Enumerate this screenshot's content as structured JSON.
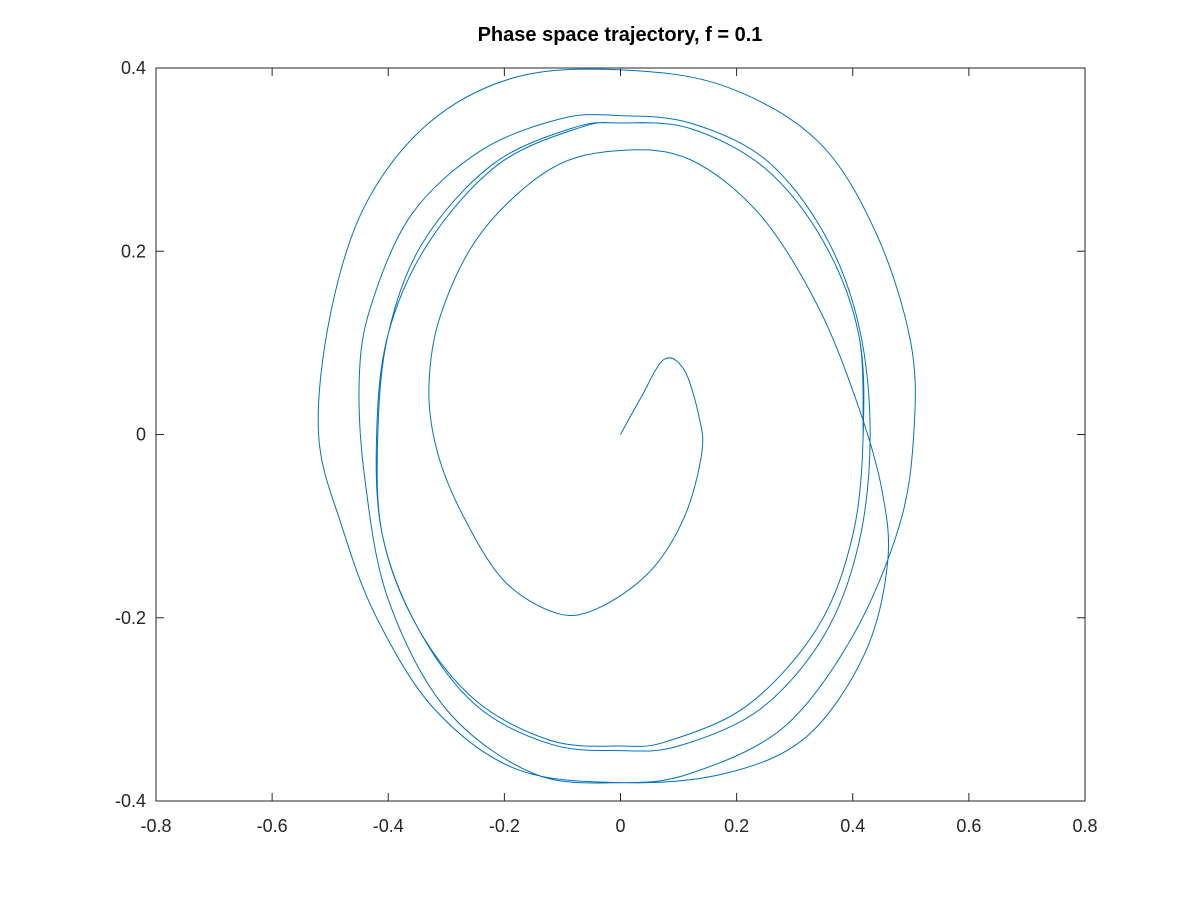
{
  "chart_data": {
    "type": "line",
    "title": "Phase space trajectory, f = 0.1",
    "xlabel": "",
    "ylabel": "",
    "xlim": [
      -0.8,
      0.8
    ],
    "ylim": [
      -0.4,
      0.4
    ],
    "xticks": [
      -0.8,
      -0.6,
      -0.4,
      -0.2,
      0,
      0.2,
      0.4,
      0.6,
      0.8
    ],
    "yticks": [
      -0.4,
      -0.2,
      0,
      0.2,
      0.4
    ],
    "xtick_labels": [
      "-0.8",
      "-0.6",
      "-0.4",
      "-0.2",
      "0",
      "0.2",
      "0.4",
      "0.6",
      "0.8"
    ],
    "ytick_labels": [
      "-0.4",
      "-0.2",
      "0",
      "0.2",
      "0.4"
    ],
    "grid": false,
    "legend": "none",
    "color": "#0072BD",
    "series": [
      {
        "x": [
          0,
          0.035,
          0.075,
          0.11,
          0.135,
          0.14,
          0.11,
          0.05,
          -0.04,
          -0.11,
          -0.2,
          -0.27,
          -0.315,
          -0.33,
          -0.31,
          -0.24,
          -0.12,
          0,
          0.12,
          0.24,
          0.34,
          0.41,
          0.45,
          0.46,
          0.42,
          0.32,
          0.18,
          0,
          -0.18,
          -0.32,
          -0.42,
          -0.48,
          -0.52,
          -0.5,
          -0.44,
          -0.33,
          -0.18,
          0,
          0.18,
          0.34,
          0.44,
          0.5,
          0.505,
          0.48,
          0.4,
          0.28,
          0.12,
          0,
          -0.15,
          -0.3,
          -0.4,
          -0.44,
          -0.45,
          -0.43,
          -0.36,
          -0.24,
          -0.1,
          0,
          0.12,
          0.25,
          0.35,
          0.41,
          0.43,
          0.41,
          0.35,
          0.24,
          0.1,
          0,
          -0.12,
          -0.25,
          -0.35,
          -0.41,
          -0.42,
          -0.4,
          -0.33,
          -0.21,
          -0.07,
          0,
          0.12,
          0.25,
          0.35,
          0.41,
          0.418,
          0.4,
          0.34,
          0.22,
          0.08,
          0,
          -0.12,
          -0.25,
          -0.35,
          -0.41,
          -0.418,
          -0.4,
          -0.34,
          -0.22,
          -0.08,
          0,
          0.12,
          0.25,
          0.35,
          0.41,
          0.418,
          0.4,
          0.34,
          0.22,
          0.08,
          0,
          -0.12,
          -0.25,
          -0.35,
          -0.41,
          -0.418,
          -0.4,
          -0.34,
          -0.22,
          -0.08,
          0,
          0.12,
          0.25,
          0.35,
          0.41,
          0.418
        ],
        "y": [
          0,
          0.04,
          0.082,
          0.07,
          0.02,
          -0.02,
          -0.09,
          -0.15,
          -0.19,
          -0.195,
          -0.16,
          -0.09,
          -0.02,
          0.05,
          0.13,
          0.22,
          0.29,
          0.31,
          0.3,
          0.24,
          0.14,
          0.03,
          -0.06,
          -0.14,
          -0.24,
          -0.33,
          -0.37,
          -0.38,
          -0.365,
          -0.3,
          -0.2,
          -0.1,
          0,
          0.13,
          0.25,
          0.34,
          0.39,
          0.398,
          0.38,
          0.32,
          0.22,
          0.1,
          0,
          -0.1,
          -0.22,
          -0.32,
          -0.37,
          -0.38,
          -0.37,
          -0.3,
          -0.18,
          -0.05,
          0.06,
          0.14,
          0.24,
          0.31,
          0.345,
          0.348,
          0.34,
          0.3,
          0.22,
          0.12,
          0,
          -0.12,
          -0.22,
          -0.3,
          -0.34,
          -0.345,
          -0.338,
          -0.295,
          -0.21,
          -0.11,
          0,
          0.11,
          0.21,
          0.295,
          0.335,
          0.34,
          0.334,
          0.29,
          0.21,
          0.11,
          0,
          -0.11,
          -0.21,
          -0.295,
          -0.335,
          -0.34,
          -0.334,
          -0.29,
          -0.21,
          -0.11,
          0,
          0.11,
          0.21,
          0.295,
          0.335,
          0.34,
          0.334,
          0.29,
          0.21,
          0.11,
          0,
          -0.11,
          -0.21,
          -0.295,
          -0.335,
          -0.34,
          -0.334,
          -0.29,
          -0.21,
          -0.11,
          0,
          0.11,
          0.21,
          0.295,
          0.335,
          0.34,
          0.334,
          0.29,
          0.21,
          0.11,
          0
        ]
      }
    ]
  }
}
